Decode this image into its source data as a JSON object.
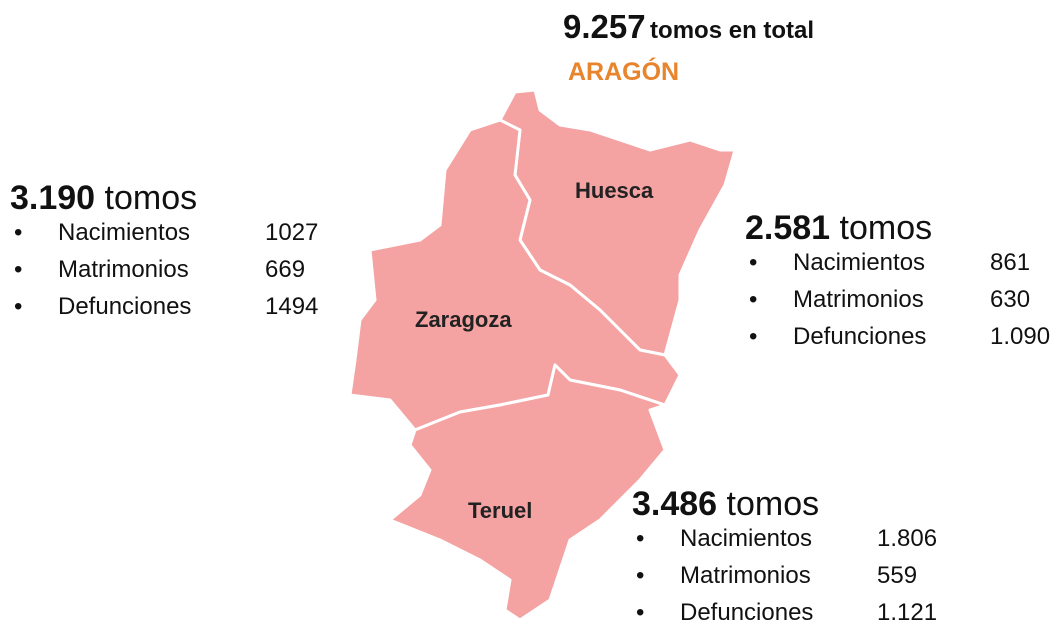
{
  "header": {
    "total": "9.257",
    "total_label": "tomos en total",
    "region": "ARAGÓN"
  },
  "provinces": [
    {
      "name": "Zaragoza",
      "total": "3.190",
      "unit": "tomos",
      "items": [
        {
          "label": "Nacimientos",
          "value": "1027"
        },
        {
          "label": "Matrimonios",
          "value": "669"
        },
        {
          "label": "Defunciones",
          "value": "1494"
        }
      ]
    },
    {
      "name": "Huesca",
      "total": "2.581",
      "unit": "tomos",
      "items": [
        {
          "label": "Nacimientos",
          "value": "861"
        },
        {
          "label": "Matrimonios",
          "value": "630"
        },
        {
          "label": "Defunciones",
          "value": "1.090"
        }
      ]
    },
    {
      "name": "Teruel",
      "total": "3.486",
      "unit": "tomos",
      "items": [
        {
          "label": "Nacimientos",
          "value": "1.806"
        },
        {
          "label": "Matrimonios",
          "value": "559"
        },
        {
          "label": "Defunciones",
          "value": "1.121"
        }
      ]
    }
  ]
}
